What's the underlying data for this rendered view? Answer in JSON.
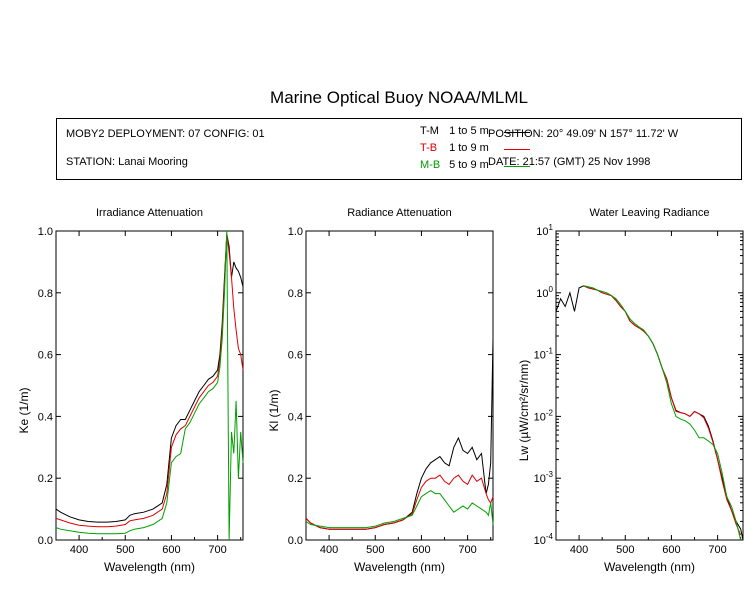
{
  "title": "Marine Optical Buoy NOAA/MLML",
  "info": {
    "deployment": "MOBY2 DEPLOYMENT: 07 CONFIG: 01",
    "station": "STATION: Lanai Mooring",
    "position": "POSITION: 20° 49.09' N   157° 11.72' W",
    "date": "DATE: 21:57 (GMT) 25 Nov 1998"
  },
  "legend": [
    {
      "code": "T-M",
      "range": "1 to 5  m",
      "color": "#000000"
    },
    {
      "code": "T-B",
      "range": "1 to 9  m",
      "color": "#e00000"
    },
    {
      "code": "M-B",
      "range": "5 to 9  m",
      "color": "#00a000"
    }
  ],
  "chart_data": [
    {
      "type": "line",
      "title": "Irradiance Attenuation",
      "xlabel": "Wavelength (nm)",
      "ylabel": "Ke  (1/m)",
      "xlim": [
        350,
        755
      ],
      "ylim": [
        0,
        1.0
      ],
      "xticks": [
        "400",
        "500",
        "600",
        "700"
      ],
      "yticks": [
        "0.0",
        "0.2",
        "0.4",
        "0.6",
        "0.8",
        "1.0"
      ],
      "series": [
        {
          "name": "T-M",
          "color": "#000000",
          "x": [
            350,
            360,
            380,
            400,
            420,
            440,
            460,
            480,
            500,
            510,
            520,
            540,
            560,
            580,
            590,
            600,
            610,
            620,
            630,
            640,
            650,
            660,
            670,
            680,
            690,
            700,
            705,
            710,
            715,
            720,
            725,
            730,
            735,
            740,
            745,
            750,
            755
          ],
          "y": [
            0.1,
            0.09,
            0.075,
            0.065,
            0.06,
            0.058,
            0.058,
            0.06,
            0.065,
            0.08,
            0.085,
            0.09,
            0.1,
            0.12,
            0.18,
            0.33,
            0.37,
            0.39,
            0.39,
            0.42,
            0.45,
            0.48,
            0.5,
            0.52,
            0.53,
            0.55,
            0.6,
            0.7,
            0.85,
            0.99,
            0.95,
            0.85,
            0.9,
            0.88,
            0.87,
            0.85,
            0.82
          ]
        },
        {
          "name": "T-B",
          "color": "#e00000",
          "x": [
            350,
            360,
            380,
            400,
            420,
            440,
            460,
            480,
            500,
            510,
            520,
            540,
            560,
            580,
            590,
            600,
            610,
            620,
            630,
            640,
            650,
            660,
            670,
            680,
            690,
            700,
            705,
            710,
            715,
            720,
            725,
            730,
            735,
            740,
            745,
            750,
            755
          ],
          "y": [
            0.07,
            0.065,
            0.055,
            0.048,
            0.045,
            0.043,
            0.043,
            0.045,
            0.05,
            0.062,
            0.065,
            0.07,
            0.08,
            0.1,
            0.15,
            0.3,
            0.34,
            0.36,
            0.37,
            0.4,
            0.43,
            0.46,
            0.48,
            0.5,
            0.51,
            0.53,
            0.58,
            0.68,
            0.83,
            0.99,
            0.93,
            0.85,
            0.75,
            0.68,
            0.62,
            0.6,
            0.55
          ]
        },
        {
          "name": "M-B",
          "color": "#00a000",
          "x": [
            350,
            360,
            380,
            400,
            420,
            440,
            460,
            480,
            500,
            510,
            520,
            540,
            560,
            580,
            590,
            600,
            610,
            620,
            630,
            640,
            650,
            660,
            670,
            680,
            690,
            700,
            705,
            710,
            715,
            720,
            725,
            730,
            735,
            740,
            745,
            750,
            755
          ],
          "y": [
            0.04,
            0.035,
            0.03,
            0.025,
            0.022,
            0.02,
            0.02,
            0.02,
            0.022,
            0.03,
            0.035,
            0.04,
            0.05,
            0.07,
            0.12,
            0.25,
            0.27,
            0.28,
            0.36,
            0.38,
            0.41,
            0.44,
            0.46,
            0.48,
            0.49,
            0.51,
            0.56,
            0.65,
            0.8,
            1.0,
            0.0,
            0.35,
            0.28,
            0.45,
            0.2,
            0.35,
            0.25
          ]
        }
      ]
    },
    {
      "type": "line",
      "title": "Radiance Attenuation",
      "xlabel": "Wavelength (nm)",
      "ylabel": "Kl  (1/m)",
      "xlim": [
        350,
        755
      ],
      "ylim": [
        0,
        1.0
      ],
      "xticks": [
        "400",
        "500",
        "600",
        "700"
      ],
      "yticks": [
        "0.0",
        "0.2",
        "0.4",
        "0.6",
        "0.8",
        "1.0"
      ],
      "series": [
        {
          "name": "T-M",
          "color": "#000000",
          "x": [
            350,
            360,
            380,
            400,
            420,
            440,
            460,
            480,
            500,
            520,
            540,
            560,
            580,
            590,
            600,
            610,
            620,
            630,
            640,
            650,
            660,
            670,
            680,
            690,
            700,
            710,
            720,
            730,
            740,
            745,
            750,
            755
          ],
          "y": [
            0.07,
            0.055,
            0.04,
            0.035,
            0.035,
            0.035,
            0.035,
            0.035,
            0.04,
            0.05,
            0.055,
            0.065,
            0.09,
            0.15,
            0.2,
            0.23,
            0.25,
            0.26,
            0.27,
            0.25,
            0.24,
            0.3,
            0.33,
            0.29,
            0.28,
            0.3,
            0.26,
            0.28,
            0.15,
            0.18,
            0.25,
            0.65
          ]
        },
        {
          "name": "T-B",
          "color": "#e00000",
          "x": [
            350,
            360,
            380,
            400,
            420,
            440,
            460,
            480,
            500,
            520,
            540,
            560,
            580,
            590,
            600,
            610,
            620,
            630,
            640,
            650,
            660,
            670,
            680,
            690,
            700,
            710,
            720,
            730,
            740,
            745,
            750,
            755
          ],
          "y": [
            0.07,
            0.055,
            0.04,
            0.035,
            0.035,
            0.035,
            0.035,
            0.035,
            0.04,
            0.05,
            0.055,
            0.065,
            0.085,
            0.13,
            0.17,
            0.19,
            0.2,
            0.2,
            0.21,
            0.19,
            0.18,
            0.2,
            0.21,
            0.19,
            0.18,
            0.21,
            0.19,
            0.2,
            0.15,
            0.13,
            0.12,
            0.14
          ]
        },
        {
          "name": "M-B",
          "color": "#00a000",
          "x": [
            350,
            360,
            380,
            400,
            420,
            440,
            460,
            480,
            500,
            520,
            540,
            560,
            580,
            590,
            600,
            610,
            620,
            630,
            640,
            650,
            660,
            670,
            680,
            690,
            700,
            710,
            720,
            730,
            740,
            745,
            750,
            755
          ],
          "y": [
            0.06,
            0.05,
            0.045,
            0.04,
            0.04,
            0.04,
            0.04,
            0.04,
            0.045,
            0.055,
            0.06,
            0.07,
            0.08,
            0.11,
            0.14,
            0.15,
            0.16,
            0.15,
            0.15,
            0.13,
            0.11,
            0.09,
            0.1,
            0.11,
            0.1,
            0.12,
            0.11,
            0.1,
            0.09,
            0.08,
            0.12,
            0.05
          ]
        }
      ]
    },
    {
      "type": "line",
      "title": "Water Leaving Radiance",
      "xlabel": "Wavelength (nm)",
      "ylabel": "Lw  (µW/cm²/sr/nm)",
      "xlim": [
        350,
        755
      ],
      "ylim": [
        0.0001,
        10
      ],
      "yscale": "log",
      "xticks": [
        "400",
        "500",
        "600",
        "700"
      ],
      "yticks": [
        {
          "base": "10",
          "exp": "1"
        },
        {
          "base": "10",
          "exp": "0"
        },
        {
          "base": "10",
          "exp": "-1"
        },
        {
          "base": "10",
          "exp": "-2"
        },
        {
          "base": "10",
          "exp": "-3"
        },
        {
          "base": "10",
          "exp": "-4"
        }
      ],
      "series": [
        {
          "name": "T-M",
          "color": "#000000",
          "x": [
            350,
            360,
            370,
            380,
            390,
            400,
            410,
            420,
            430,
            440,
            450,
            460,
            470,
            480,
            490,
            500,
            510,
            520,
            530,
            540,
            550,
            560,
            570,
            580,
            590,
            600,
            610,
            620,
            630,
            640,
            650,
            660,
            670,
            680,
            690,
            700,
            710,
            720,
            730,
            740,
            750,
            755
          ],
          "y": [
            0.5,
            0.8,
            0.6,
            1.0,
            0.5,
            1.2,
            1.3,
            1.2,
            1.15,
            1.1,
            1.0,
            0.95,
            0.9,
            0.75,
            0.6,
            0.5,
            0.35,
            0.3,
            0.27,
            0.24,
            0.2,
            0.15,
            0.1,
            0.06,
            0.04,
            0.02,
            0.0125,
            0.0115,
            0.011,
            0.01,
            0.012,
            0.011,
            0.01,
            0.007,
            0.004,
            0.002,
            0.001,
            0.0005,
            0.0003,
            0.0002,
            0.00015,
            0.0001
          ]
        },
        {
          "name": "T-B",
          "color": "#e00000",
          "x": [
            410,
            420,
            430,
            440,
            450,
            460,
            470,
            480,
            490,
            500,
            510,
            520,
            530,
            540,
            550,
            560,
            570,
            580,
            590,
            600,
            610,
            620,
            630,
            640,
            650,
            660,
            670,
            680,
            690,
            700,
            710,
            720,
            730,
            740,
            750
          ],
          "y": [
            1.3,
            1.2,
            1.15,
            1.1,
            1.0,
            0.95,
            0.9,
            0.75,
            0.6,
            0.5,
            0.35,
            0.3,
            0.27,
            0.24,
            0.2,
            0.15,
            0.1,
            0.06,
            0.04,
            0.02,
            0.012,
            0.0115,
            0.011,
            0.01,
            0.012,
            0.011,
            0.0095,
            0.0065,
            0.0038,
            0.002,
            0.0009,
            0.00045,
            0.0003,
            0.00018,
            0.00012
          ]
        },
        {
          "name": "M-B",
          "color": "#00a000",
          "x": [
            410,
            420,
            430,
            440,
            450,
            460,
            470,
            480,
            490,
            500,
            510,
            520,
            530,
            540,
            550,
            560,
            570,
            580,
            590,
            600,
            610,
            620,
            630,
            640,
            650,
            660,
            670,
            680,
            690,
            700,
            710,
            720,
            730,
            740,
            750
          ],
          "y": [
            1.3,
            1.25,
            1.2,
            1.1,
            1.05,
            1.0,
            0.9,
            0.8,
            0.65,
            0.5,
            0.38,
            0.32,
            0.28,
            0.25,
            0.2,
            0.15,
            0.1,
            0.06,
            0.035,
            0.016,
            0.01,
            0.009,
            0.0085,
            0.0075,
            0.006,
            0.0045,
            0.0045,
            0.004,
            0.0035,
            0.0025,
            0.0012,
            0.0005,
            0.00035,
            0.0002,
            0.0001
          ]
        }
      ]
    }
  ]
}
